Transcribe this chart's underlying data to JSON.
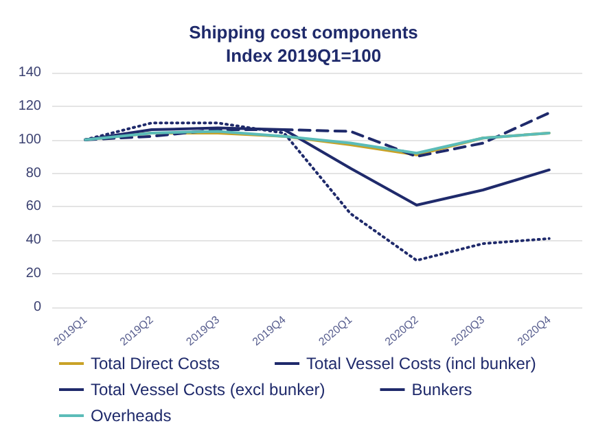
{
  "chart_data": {
    "type": "line",
    "title": "Shipping cost components",
    "subtitle": "Index 2019Q1=100",
    "categories": [
      "2019Q1",
      "2019Q2",
      "2019Q3",
      "2019Q4",
      "2020Q1",
      "2020Q2",
      "2020Q3",
      "2020Q4"
    ],
    "series": [
      {
        "name": "Total Direct Costs",
        "color": "#c9a227",
        "line_style": "solid",
        "values": [
          100,
          104,
          104,
          102,
          97,
          91,
          101,
          104
        ]
      },
      {
        "name": "Total Vessel Costs (incl bunker)",
        "color": "#1f2a6b",
        "line_style": "solid",
        "values": [
          100,
          106,
          107,
          106,
          83,
          61,
          70,
          82
        ]
      },
      {
        "name": "Total Vessel Costs (excl bunker)",
        "color": "#1f2a6b",
        "line_style": "dashed",
        "values": [
          100,
          102,
          106,
          106,
          105,
          90,
          98,
          116
        ]
      },
      {
        "name": "Bunkers",
        "color": "#1f2a6b",
        "line_style": "dotted",
        "values": [
          100,
          110,
          110,
          104,
          56,
          28,
          38,
          41
        ]
      },
      {
        "name": "Overheads",
        "color": "#5bbcb8",
        "line_style": "solid",
        "values": [
          100,
          104,
          105,
          102,
          98,
          92,
          101,
          104
        ]
      }
    ],
    "ylim": [
      0,
      140
    ],
    "yticks": [
      0,
      20,
      40,
      60,
      80,
      100,
      120,
      140
    ],
    "grid": "y",
    "legend": "bottom",
    "marker": "none"
  }
}
